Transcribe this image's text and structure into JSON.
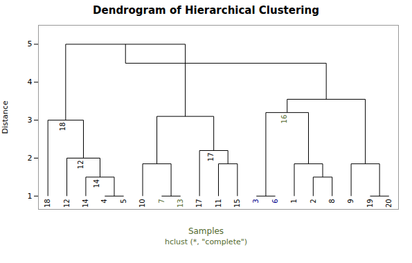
{
  "chart_data": {
    "type": "dendrogram",
    "title": "Dendrogram of Hierarchical Clustering",
    "xlabel": "Samples",
    "xlabel_color": "#556B2F",
    "annotations": [
      {
        "text": "hclust (*, \"complete\")",
        "color": "#556B2F"
      }
    ],
    "ylabel": "Distance",
    "color": "black",
    "leaf_height": 1.0,
    "leaves": [
      {
        "label": "18",
        "color": "black"
      },
      {
        "label": "12",
        "color": "black"
      },
      {
        "label": "14",
        "color": "black"
      },
      {
        "label": "4",
        "color": "black"
      },
      {
        "label": "5",
        "color": "black"
      },
      {
        "label": "10",
        "color": "black"
      },
      {
        "label": "7",
        "color": "#556B2F"
      },
      {
        "label": "13",
        "color": "#556B2F"
      },
      {
        "label": "17",
        "color": "black"
      },
      {
        "label": "11",
        "color": "black"
      },
      {
        "label": "15",
        "color": "black"
      },
      {
        "label": "3",
        "color": "#00008B"
      },
      {
        "label": "6",
        "color": "#00008B"
      },
      {
        "label": "1",
        "color": "black"
      },
      {
        "label": "2",
        "color": "black"
      },
      {
        "label": "8",
        "color": "black"
      },
      {
        "label": "9",
        "color": "black"
      },
      {
        "label": "19",
        "color": "black"
      },
      {
        "label": "20",
        "color": "black"
      }
    ],
    "merges": [
      {
        "left": "4",
        "right": "5",
        "height": 1.0
      },
      {
        "left": "14",
        "right": 0,
        "height": 1.5,
        "label": "14",
        "label_color": "black"
      },
      {
        "left": "12",
        "right": 1,
        "height": 2.0,
        "label": "12",
        "label_color": "black"
      },
      {
        "left": "18",
        "right": 2,
        "height": 3.0,
        "label": "18",
        "label_color": "black"
      },
      {
        "left": "7",
        "right": "13",
        "height": 1.0
      },
      {
        "left": "10",
        "right": 4,
        "height": 1.85
      },
      {
        "left": "11",
        "right": "15",
        "height": 1.85
      },
      {
        "left": "17",
        "right": 6,
        "height": 2.2,
        "label": "17",
        "label_color": "black"
      },
      {
        "left": 5,
        "right": 7,
        "height": 3.1
      },
      {
        "left": 3,
        "right": 8,
        "height": 5.0
      },
      {
        "left": "3",
        "right": "6",
        "height": 1.0
      },
      {
        "left": "2",
        "right": "8",
        "height": 1.5
      },
      {
        "left": "1",
        "right": 11,
        "height": 1.85
      },
      {
        "left": 10,
        "right": 12,
        "height": 3.2,
        "label": "16",
        "label_color": "#556B2F"
      },
      {
        "left": "19",
        "right": "20",
        "height": 1.0
      },
      {
        "left": "9",
        "right": 14,
        "height": 1.85
      },
      {
        "left": 13,
        "right": 15,
        "height": 3.55
      },
      {
        "left": 9,
        "right": 16,
        "height": 4.5
      }
    ],
    "ylim": [
      0.65,
      5.5
    ],
    "yticks": [
      1,
      2,
      3,
      4,
      5
    ]
  }
}
